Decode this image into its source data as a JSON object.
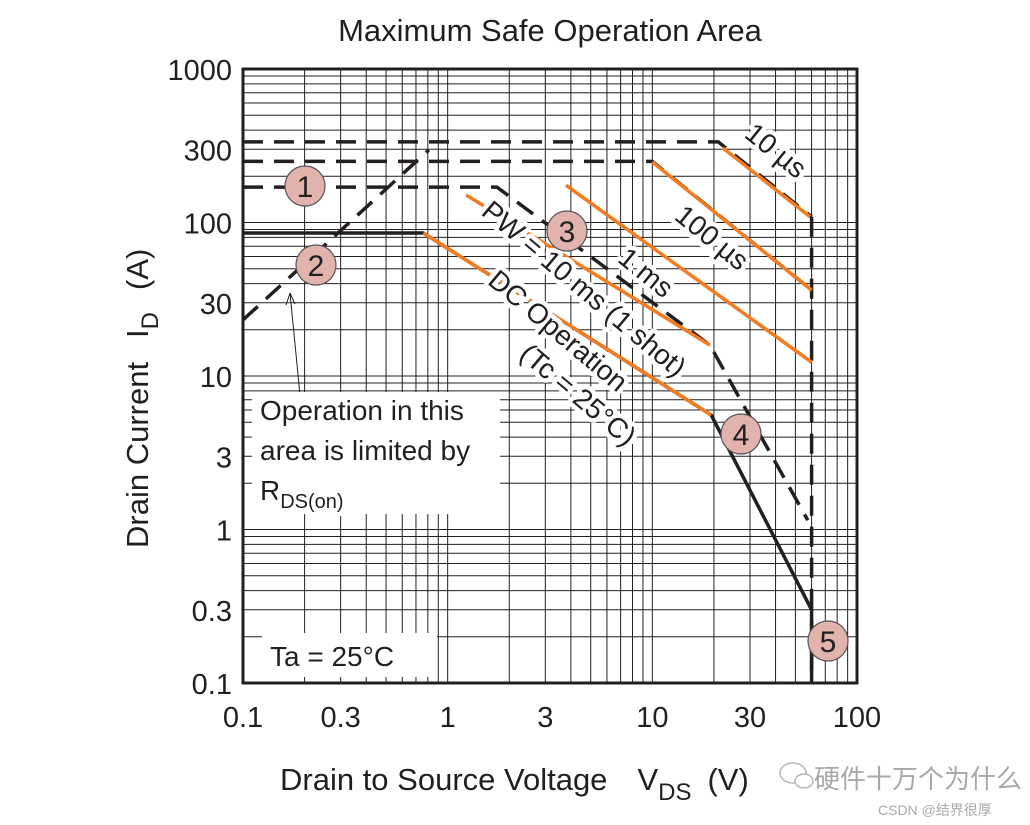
{
  "chart_data": {
    "type": "line",
    "title": "Maximum Safe Operation Area",
    "xlabel": {
      "main": "Drain to Source Voltage",
      "symbol": "V",
      "sub": "DS",
      "unit": "(V)"
    },
    "ylabel": {
      "main": "Drain Current",
      "symbol": "I",
      "sub": "D",
      "unit": "(A)"
    },
    "xscale": "log",
    "yscale": "log",
    "xlim": [
      0.1,
      100
    ],
    "ylim": [
      0.1,
      1000
    ],
    "grid": true,
    "xticks": [
      "0.1",
      "0.3",
      "1",
      "3",
      "10",
      "30",
      "100"
    ],
    "xtick_values": [
      0.1,
      0.3,
      1,
      3,
      10,
      30,
      100
    ],
    "yticks": [
      "1000",
      "300",
      "100",
      "30",
      "10",
      "3",
      "1",
      "0.3",
      "0.1"
    ],
    "ytick_values": [
      1000,
      300,
      100,
      30,
      10,
      3,
      1,
      0.3,
      0.1
    ],
    "series": [
      {
        "name": "10 µs",
        "color": "#f47b20",
        "style": "solid",
        "points": [
          [
            22.1,
            306
          ],
          [
            58.9,
            109
          ]
        ]
      },
      {
        "name": "100 µs",
        "color": "#f47b20",
        "style": "solid",
        "points": [
          [
            10,
            248
          ],
          [
            60,
            36.3
          ]
        ]
      },
      {
        "name": "1 ms",
        "color": "#f47b20",
        "style": "solid",
        "points": [
          [
            3.78,
            175
          ],
          [
            60,
            12.3
          ]
        ]
      },
      {
        "name": "PW = 10 ms (1 shot)",
        "color": "#f47b20",
        "style": "solid",
        "points": [
          [
            1.23,
            151
          ],
          [
            19.1,
            15.9
          ]
        ]
      },
      {
        "name": "DC Operation (Tc = 25°C)",
        "color": "#f47b20",
        "style": "solid",
        "points": [
          [
            0.76,
            85.4
          ],
          [
            19.4,
            5.57
          ]
        ]
      },
      {
        "color": "#231f20",
        "style": "dashed",
        "points": [
          [
            0.1,
            335
          ],
          [
            21,
            335
          ],
          [
            60,
            109
          ]
        ]
      },
      {
        "color": "#231f20",
        "style": "dashed",
        "points": [
          [
            0.1,
            250
          ],
          [
            10,
            250
          ],
          [
            60,
            36.3
          ]
        ]
      },
      {
        "color": "#231f20",
        "style": "dashed",
        "points": [
          [
            0.1,
            170
          ],
          [
            1.74,
            170
          ],
          [
            19.1,
            15.9
          ],
          [
            57.5,
            1.15
          ]
        ]
      },
      {
        "color": "#231f20",
        "style": "solid",
        "points": [
          [
            0.1,
            85.4
          ],
          [
            0.76,
            85.4
          ],
          [
            19.4,
            5.57
          ],
          [
            60,
            0.3
          ],
          [
            60,
            0.1
          ]
        ]
      },
      {
        "color": "#231f20",
        "style": "dashed",
        "points": [
          [
            0.1,
            23.2
          ],
          [
            0.81,
            297
          ]
        ]
      },
      {
        "color": "#231f20",
        "style": "dashed",
        "points": [
          [
            60,
            109
          ],
          [
            60,
            0.1
          ]
        ]
      }
    ],
    "annotations": {
      "labels": [
        "10 µs",
        "100 µs",
        "1 ms",
        "PW = 10 ms (1 shot)",
        "DC Operation",
        "(Tc = 25°C)"
      ],
      "rds_note": {
        "line1": "Operation in this",
        "line2": "area is limited by",
        "symbol": "R",
        "sub": "DS(on)"
      },
      "ambient": "Ta = 25°C",
      "markers": [
        "1",
        "2",
        "3",
        "4",
        "5"
      ],
      "marker_color": "#e2b2ac"
    }
  },
  "watermark": {
    "line1": "硬件十万个为什么",
    "line2": "CSDN @结界很厚"
  }
}
